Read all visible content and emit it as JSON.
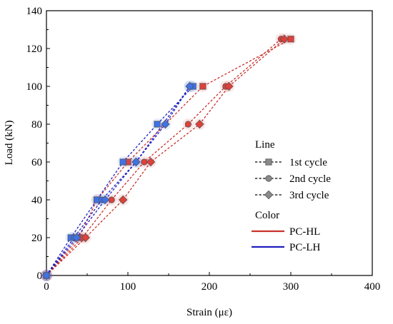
{
  "chart_data": {
    "type": "line",
    "xlabel": "Strain (με)",
    "ylabel": "Load (kN)",
    "xlim": [
      0,
      400
    ],
    "ylim": [
      0,
      140
    ],
    "xticks": [
      0,
      100,
      200,
      300,
      400
    ],
    "yticks": [
      0,
      20,
      40,
      60,
      80,
      100,
      120,
      140
    ],
    "grid": false,
    "legend_position": "right",
    "legend_line_title": "Line",
    "legend_color_title": "Color",
    "line_styles": [
      {
        "label": "1st cycle",
        "marker": "square"
      },
      {
        "label": "2nd cycle",
        "marker": "circle"
      },
      {
        "label": "3rd cycle",
        "marker": "diamond"
      }
    ],
    "color_groups": [
      {
        "label": "PC-HL",
        "color": "#e0403a",
        "line_color": "#c8322c"
      },
      {
        "label": "PC-LH",
        "color": "#3f72e6",
        "line_color": "#1f1fbf"
      }
    ],
    "series": [
      {
        "group": "PC-HL",
        "cycle": "1st cycle",
        "marker": "square",
        "x": [
          0,
          40,
          62,
          100,
          192,
          300
        ],
        "y": [
          0,
          20,
          40,
          60,
          100,
          125
        ]
      },
      {
        "group": "PC-HL",
        "cycle": "2nd cycle",
        "marker": "circle",
        "x": [
          0,
          44,
          80,
          120,
          174,
          220,
          288
        ],
        "y": [
          0,
          20,
          40,
          60,
          80,
          100,
          125
        ]
      },
      {
        "group": "PC-HL",
        "cycle": "3rd cycle",
        "marker": "diamond",
        "x": [
          0,
          48,
          94,
          128,
          188,
          224,
          292
        ],
        "y": [
          0,
          20,
          40,
          60,
          80,
          100,
          125
        ]
      },
      {
        "group": "PC-LH",
        "cycle": "1st cycle",
        "marker": "square",
        "x": [
          0,
          30,
          62,
          94,
          136,
          180
        ],
        "y": [
          0,
          20,
          40,
          60,
          80,
          100
        ]
      },
      {
        "group": "PC-LH",
        "cycle": "2nd cycle",
        "marker": "circle",
        "x": [
          0,
          34,
          68,
          110,
          176
        ],
        "y": [
          0,
          20,
          40,
          60,
          100
        ]
      },
      {
        "group": "PC-LH",
        "cycle": "3rd cycle",
        "marker": "diamond",
        "x": [
          0,
          37,
          72,
          110,
          146,
          176
        ],
        "y": [
          0,
          20,
          40,
          60,
          80,
          100
        ]
      }
    ]
  }
}
